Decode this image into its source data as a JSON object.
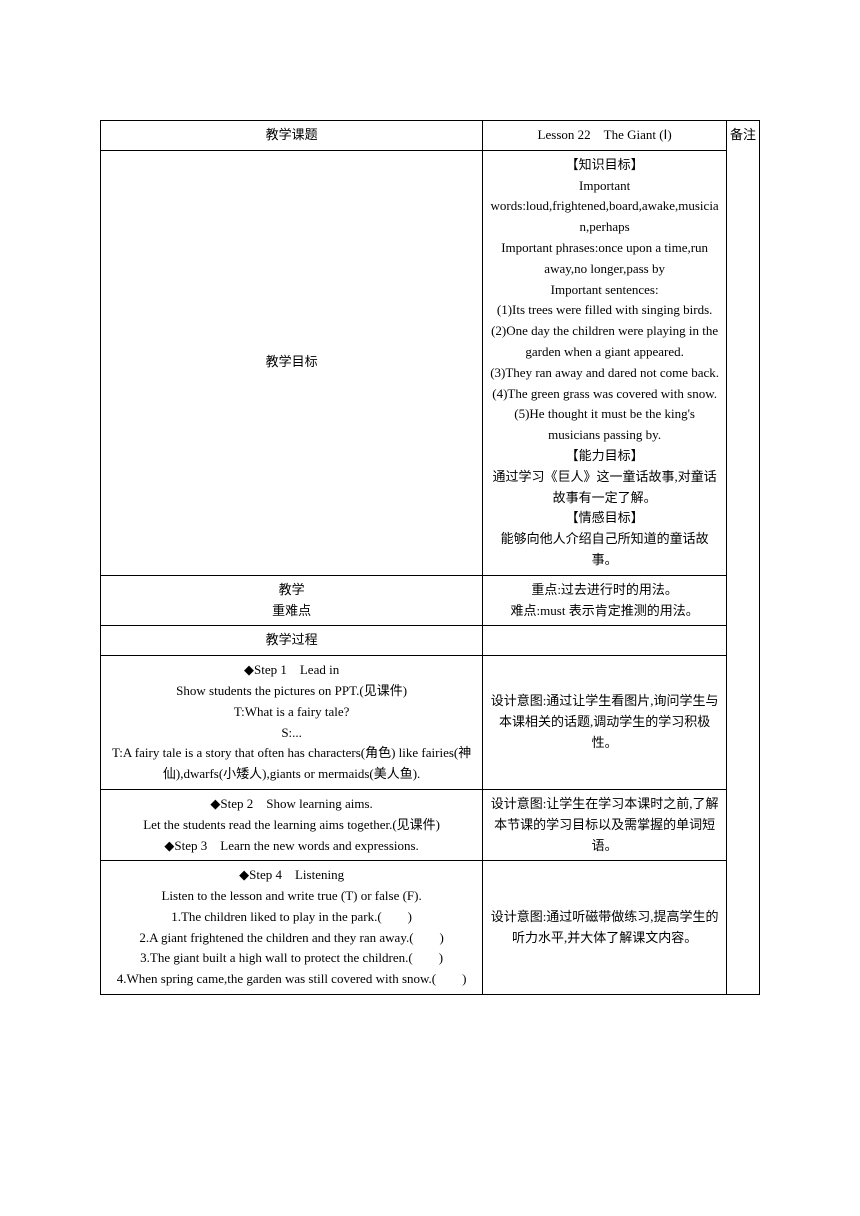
{
  "header": {
    "topic_label": "教学课题",
    "lesson_title": "Lesson 22 The Giant (Ⅰ)",
    "note_label": "备注"
  },
  "objectives": {
    "label": "教学目标",
    "knowledge_title": "【知识目标】",
    "important_label": "Important",
    "words": "words:loud,frightened,board,awake,musician,perhaps",
    "phrases": "Important phrases:once upon a time,run away,no longer,pass by",
    "sentences_title": "Important sentences:",
    "s1": "(1)Its trees were filled with singing birds.",
    "s2": "(2)One day the children were playing in the garden when a giant appeared.",
    "s3": "(3)They ran away and dared not come back.",
    "s4": "(4)The green grass was covered with snow.",
    "s5": "(5)He thought it must be the king's musicians passing by.",
    "ability_title": "【能力目标】",
    "ability_text": "通过学习《巨人》这一童话故事,对童话故事有一定了解。",
    "emotion_title": "【情感目标】",
    "emotion_text": "能够向他人介绍自己所知道的童话故事。"
  },
  "keypoints": {
    "label1": "教学",
    "label2": "重难点",
    "key": "重点:过去进行时的用法。",
    "diff": "难点:must 表示肯定推测的用法。"
  },
  "process": {
    "label": "教学过程"
  },
  "step1": {
    "title": "◆Step 1 Lead in",
    "line1": "Show students the pictures on PPT.(见课件)",
    "line2": "T:What is a fairy tale?",
    "line3": "S:...",
    "line4": "T:A fairy tale is a story that often has characters(角色) like fairies(神仙),dwarfs(小矮人),giants or mermaids(美人鱼).",
    "intent": "设计意图:通过让学生看图片,询问学生与本课相关的话题,调动学生的学习积极性。"
  },
  "step23": {
    "title2": "◆Step 2 Show learning aims.",
    "line2": "Let the students read the learning aims together.(见课件)",
    "title3": "◆Step 3 Learn the new words and expressions.",
    "intent": "设计意图:让学生在学习本课时之前,了解本节课的学习目标以及需掌握的单词短语。"
  },
  "step4": {
    "title": "◆Step 4 Listening",
    "line1": "Listen to the lesson and write true (T) or false (F).",
    "q1": "1.The children liked to play in the park.(  )",
    "q2": "2.A giant frightened the children and they ran away.(  )",
    "q3": "3.The giant built a high wall to protect the children.(  )",
    "q4": "4.When spring came,the garden was still covered with snow.(  )",
    "intent": "设计意图:通过听磁带做练习,提高学生的听力水平,并大体了解课文内容。"
  }
}
